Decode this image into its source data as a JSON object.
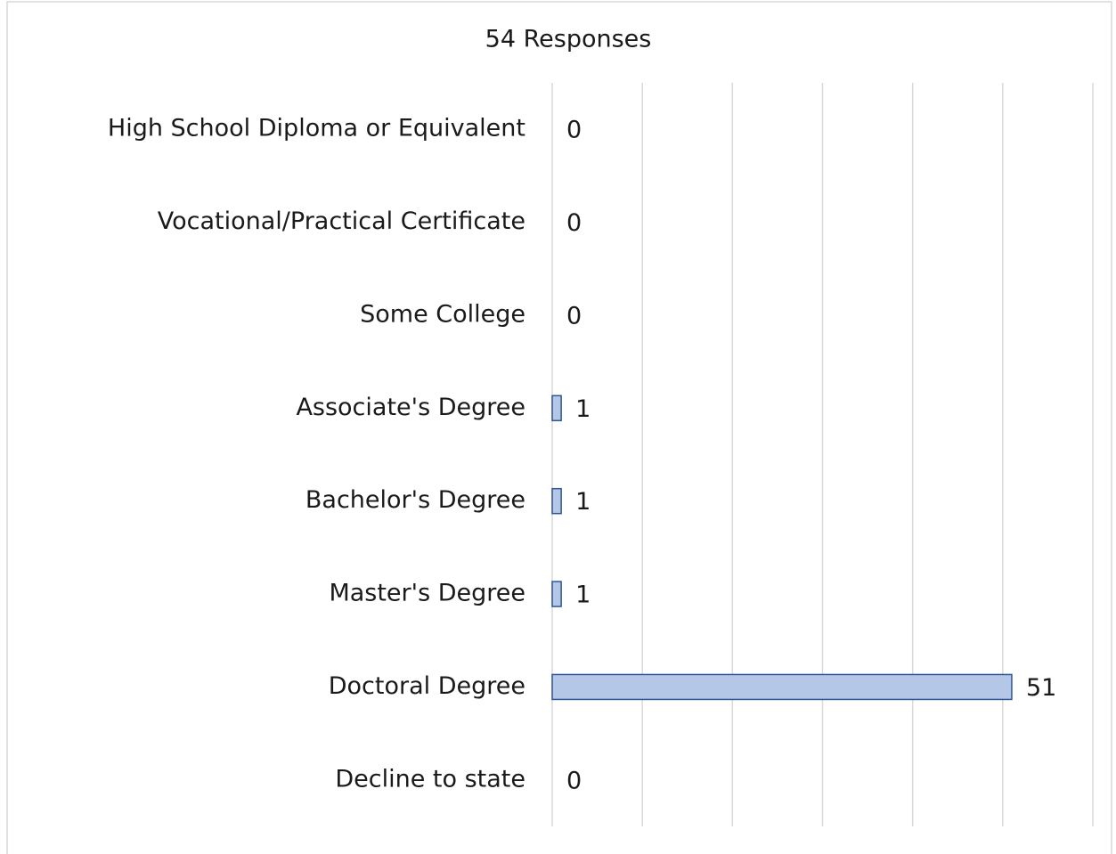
{
  "chart_data": {
    "type": "bar",
    "orientation": "horizontal",
    "title": "54 Responses",
    "categories": [
      "High School Diploma or Equivalent",
      "Vocational/Practical Certificate",
      "Some College",
      "Associate's Degree",
      "Bachelor's Degree",
      "Master's Degree",
      "Doctoral Degree",
      "Decline to state"
    ],
    "values": [
      0,
      0,
      0,
      1,
      1,
      1,
      51,
      0
    ],
    "color": "#b4c7e7",
    "edge_color": "#2f5597",
    "xlim": [
      0,
      60
    ],
    "xticks": [
      0,
      10,
      20,
      30,
      40,
      50,
      60
    ],
    "grid": true
  }
}
